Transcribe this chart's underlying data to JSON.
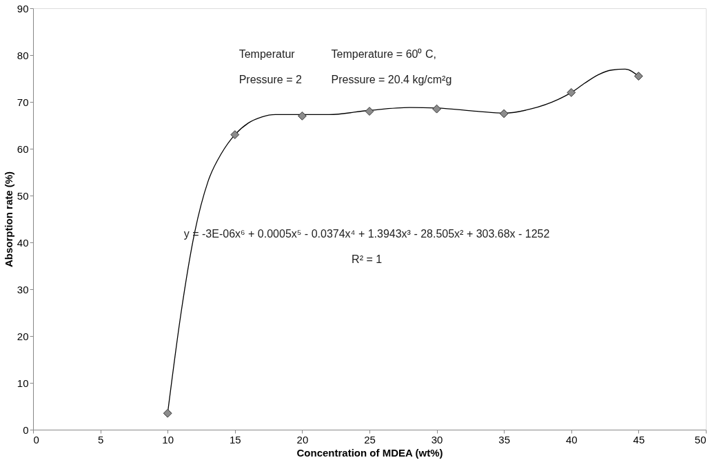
{
  "chart_data": {
    "type": "scatter",
    "xlabel": "Concentration of MDEA (wt%)",
    "ylabel": "Absorption rate (%)",
    "xlim": [
      0,
      50
    ],
    "xticks": [
      0,
      5,
      10,
      15,
      20,
      25,
      30,
      35,
      40,
      45,
      50
    ],
    "ylim": [
      0,
      90
    ],
    "yticks": [
      0,
      10,
      20,
      30,
      40,
      50,
      60,
      70,
      80,
      90
    ],
    "grid": false,
    "series": [
      {
        "type": "line",
        "color": "#000000",
        "marker": "none",
        "x": [
          10,
          11,
          12,
          13,
          14,
          15,
          16,
          17,
          18,
          20,
          22,
          25,
          28,
          30,
          33,
          35,
          37,
          39,
          40,
          41,
          42,
          43,
          44,
          45
        ],
        "values": [
          3.5,
          25,
          42,
          53,
          59,
          63,
          65.5,
          66.8,
          67.3,
          67.3,
          67.3,
          68.2,
          68.8,
          68.7,
          68,
          67.6,
          68.5,
          70.5,
          72,
          74,
          75.8,
          76.8,
          77,
          75.5
        ]
      },
      {
        "color": "#8c8c8c",
        "marker": "diamond",
        "x": [
          10,
          15,
          20,
          25,
          30,
          35,
          40,
          45
        ],
        "values": [
          3.5,
          63,
          67,
          68,
          68.5,
          67.5,
          72,
          75.5
        ]
      }
    ],
    "annotations": [
      "Temperatur",
      "Pressure = 2",
      "Temperature = 60⁰ C,",
      "Pressure = 20.4 kg/cm²g",
      "y = -3E-06x⁶ + 0.0005x⁵ - 0.0374x⁴ + 1.3943x³ - 28.505x² + 303.68x - 1252",
      "R² = 1"
    ]
  }
}
